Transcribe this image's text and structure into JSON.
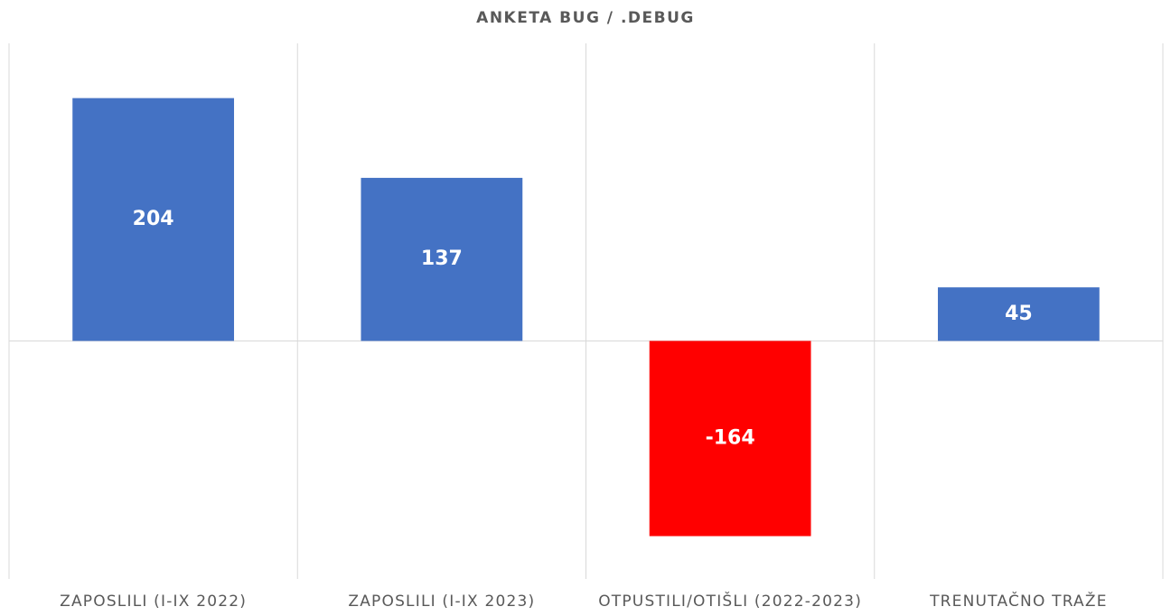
{
  "chart_data": {
    "type": "bar",
    "title": "ANKETA BUG / .DEBUG",
    "categories": [
      "ZAPOSLILI (I-IX 2022)",
      "ZAPOSLILI (I-IX 2023)",
      "OTPUSTILI/OTIŠLI (2022-2023)",
      "TRENUTAČNO TRAŽE"
    ],
    "values": [
      204,
      137,
      -164,
      45
    ],
    "colors": [
      "#4472c4",
      "#4472c4",
      "#ff0000",
      "#4472c4"
    ],
    "ylim": [
      -200,
      250
    ]
  }
}
